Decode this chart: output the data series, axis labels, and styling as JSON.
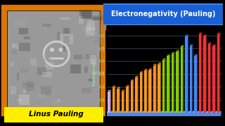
{
  "title": "Electronegativity (Pauling)",
  "ylabel": "Pauling scale",
  "background_color": "#000000",
  "title_bg": "#1a5fd4",
  "title_border": "#4499ff",
  "title_color": "#ffffff",
  "yticks": [
    0.0,
    0.5,
    1.0,
    1.5,
    2.0,
    2.5,
    3.0
  ],
  "bars": [
    {
      "value": 0.82,
      "color": "#ddaadd"
    },
    {
      "value": 0.98,
      "color": "#ff9922"
    },
    {
      "value": 0.93,
      "color": "#ff9922"
    },
    {
      "value": 0.82,
      "color": "#ff9922"
    },
    {
      "value": 1.0,
      "color": "#ff9922"
    },
    {
      "value": 1.22,
      "color": "#ff9922"
    },
    {
      "value": 1.36,
      "color": "#ff9922"
    },
    {
      "value": 1.54,
      "color": "#ff9922"
    },
    {
      "value": 1.63,
      "color": "#ff9922"
    },
    {
      "value": 1.65,
      "color": "#ff9922"
    },
    {
      "value": 1.83,
      "color": "#ff9922"
    },
    {
      "value": 1.88,
      "color": "#ff9922"
    },
    {
      "value": 2.04,
      "color": "#88cc00"
    },
    {
      "value": 2.19,
      "color": "#88cc00"
    },
    {
      "value": 2.28,
      "color": "#88cc00"
    },
    {
      "value": 2.36,
      "color": "#88cc00"
    },
    {
      "value": 2.55,
      "color": "#88cc00"
    },
    {
      "value": 2.96,
      "color": "#4488ff"
    },
    {
      "value": 2.58,
      "color": "#4488ff"
    },
    {
      "value": 2.2,
      "color": "#4488ff"
    },
    {
      "value": 3.04,
      "color": "#ff3333"
    },
    {
      "value": 2.96,
      "color": "#ff3333"
    },
    {
      "value": 2.66,
      "color": "#ff3333"
    },
    {
      "value": 2.58,
      "color": "#ff3333"
    },
    {
      "value": 3.04,
      "color": "#ff3333"
    }
  ],
  "base_color_top": "#7aadff",
  "base_color_front": "#5588dd",
  "base_color_side": "#3366bb",
  "grid_color": "#666688",
  "axis_label_color": "#99ff99",
  "person_name": "Linus Pauling",
  "name_bg": "#ffee00",
  "name_color": "#000000",
  "photo_border": "#dd7700",
  "photo_bg": "#888888"
}
